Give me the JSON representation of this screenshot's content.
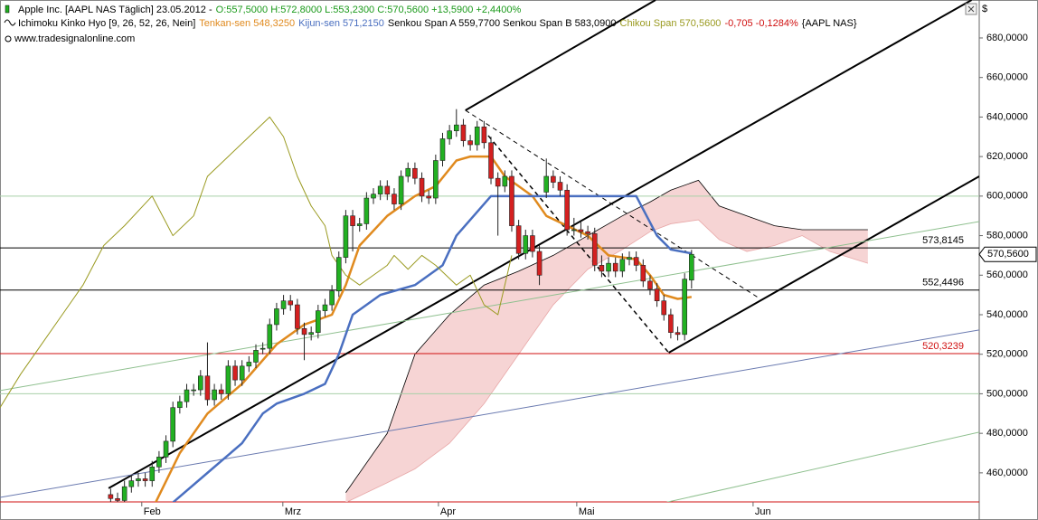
{
  "header": {
    "line1": [
      {
        "text": "Apple Inc. [AAPL NAS  Täglich] 23.05.2012 -",
        "color": "#000000"
      },
      {
        "text": "O:557,5000 H:572,8000 L:553,2300 C:570,5600 +13,5900 +2,4400%",
        "color": "#1a9a1a"
      }
    ],
    "line2": [
      {
        "text": "Ichimoku Kinko Hyo [9, 26, 52, 26, Nein]",
        "color": "#000000"
      },
      {
        "text": "Tenkan-sen 548,3250",
        "color": "#e08a1e"
      },
      {
        "text": "Kijun-sen 571,2150",
        "color": "#4a6fc0"
      },
      {
        "text": "Senkou Span A 559,7700 Senkou Span B 583,0900",
        "color": "#000000"
      },
      {
        "text": "Chikou Span 570,5600",
        "color": "#9a9a20"
      },
      {
        "text": "-0,705 -0,1284%",
        "color": "#d01010"
      },
      {
        "text": "{AAPL NAS}",
        "color": "#000000"
      }
    ],
    "line3": "www.tradesignalonline.com",
    "currency": "$"
  },
  "chart_data": {
    "type": "candlestick",
    "xlim": [
      0,
      141.6
    ],
    "ylim": [
      445.3,
      699.2
    ],
    "xticks": [
      {
        "value": 20.5,
        "label": "Feb"
      },
      {
        "value": 40.9,
        "label": "Mrz"
      },
      {
        "value": 63.4,
        "label": "Apr"
      },
      {
        "value": 83.4,
        "label": "Mai"
      },
      {
        "value": 108.9,
        "label": "Jun"
      }
    ],
    "yticks": [
      {
        "value": 460,
        "label": "460,0000"
      },
      {
        "value": 480,
        "label": "480,0000"
      },
      {
        "value": 500,
        "label": "500,0000"
      },
      {
        "value": 520,
        "label": "520,0000"
      },
      {
        "value": 540,
        "label": "540,0000"
      },
      {
        "value": 560,
        "label": "560,0000"
      },
      {
        "value": 580,
        "label": "580,0000"
      },
      {
        "value": 600,
        "label": "600,0000"
      },
      {
        "value": 620,
        "label": "620,0000"
      },
      {
        "value": 640,
        "label": "640,0000"
      },
      {
        "value": 660,
        "label": "660,0000"
      },
      {
        "value": 680,
        "label": "680,0000"
      }
    ],
    "up_color": "#22b022",
    "down_color": "#d42020",
    "candles": [
      [
        16,
        449,
        452,
        444,
        447
      ],
      [
        17,
        447,
        450,
        443,
        446
      ],
      [
        18,
        446,
        456,
        443,
        453
      ],
      [
        19,
        453,
        459,
        450,
        456
      ],
      [
        20,
        456,
        460,
        453,
        457
      ],
      [
        21,
        457,
        460,
        453,
        456
      ],
      [
        22,
        456,
        466,
        453,
        463
      ],
      [
        23,
        463,
        471,
        460,
        468
      ],
      [
        24,
        468,
        479,
        465,
        476
      ],
      [
        25,
        476,
        496,
        473,
        493
      ],
      [
        26,
        493,
        499,
        490,
        496
      ],
      [
        27,
        496,
        505,
        493,
        502
      ],
      [
        28,
        502,
        505,
        499,
        502
      ],
      [
        29,
        502,
        512,
        499,
        509
      ],
      [
        30,
        509,
        526,
        494,
        497
      ],
      [
        31,
        497,
        505,
        494,
        502
      ],
      [
        32,
        502,
        505,
        497,
        500
      ],
      [
        33,
        500,
        517,
        497,
        514
      ],
      [
        34,
        514,
        517,
        504,
        507
      ],
      [
        35,
        507,
        517,
        504,
        514
      ],
      [
        36,
        514,
        519,
        511,
        516
      ],
      [
        37,
        516,
        525,
        513,
        522
      ],
      [
        38,
        523,
        526,
        520,
        523
      ],
      [
        39,
        523,
        538,
        520,
        535
      ],
      [
        40,
        535,
        546,
        532,
        543
      ],
      [
        41,
        543,
        550,
        540,
        547
      ],
      [
        42,
        547,
        550,
        542,
        545
      ],
      [
        43,
        545,
        548,
        530,
        533
      ],
      [
        44,
        533,
        536,
        517,
        530
      ],
      [
        45,
        530,
        534,
        527,
        531
      ],
      [
        46,
        531,
        545,
        528,
        542
      ],
      [
        47,
        542,
        548,
        539,
        545
      ],
      [
        48,
        545,
        555,
        542,
        552
      ],
      [
        49,
        552,
        572,
        549,
        569
      ],
      [
        50,
        569,
        593,
        566,
        590
      ],
      [
        51,
        590,
        593,
        572,
        585
      ],
      [
        52,
        585,
        589,
        582,
        586
      ],
      [
        53,
        586,
        602,
        583,
        599
      ],
      [
        54,
        599,
        604,
        596,
        601
      ],
      [
        55,
        601,
        608,
        598,
        605
      ],
      [
        56,
        605,
        608,
        598,
        601
      ],
      [
        57,
        601,
        604,
        593,
        596
      ],
      [
        58,
        596,
        613,
        593,
        610
      ],
      [
        59,
        610,
        617,
        607,
        614
      ],
      [
        60,
        614,
        617,
        606,
        609
      ],
      [
        61,
        609,
        612,
        597,
        600
      ],
      [
        62,
        600,
        603,
        596,
        599
      ],
      [
        63,
        599,
        621,
        596,
        618
      ],
      [
        64,
        618,
        632,
        615,
        629
      ],
      [
        65,
        629,
        636,
        626,
        633
      ],
      [
        66,
        633,
        644,
        630,
        636
      ],
      [
        67,
        636,
        639,
        625,
        628
      ],
      [
        68,
        628,
        631,
        623,
        626
      ],
      [
        69,
        626,
        638,
        623,
        635
      ],
      [
        70,
        635,
        638,
        624,
        627
      ],
      [
        71,
        627,
        630,
        606,
        609
      ],
      [
        72,
        609,
        612,
        580,
        605
      ],
      [
        73,
        605,
        613,
        602,
        610
      ],
      [
        74,
        610,
        613,
        582,
        585
      ],
      [
        75,
        585,
        588,
        568,
        571
      ],
      [
        76,
        571,
        583,
        568,
        580
      ],
      [
        77,
        580,
        583,
        569,
        572
      ],
      [
        78,
        572,
        575,
        555,
        560
      ],
      [
        79,
        602,
        619,
        599,
        610
      ],
      [
        80,
        610,
        613,
        604,
        607
      ],
      [
        81,
        607,
        610,
        600,
        603
      ],
      [
        82,
        603,
        606,
        580,
        583
      ],
      [
        83,
        583,
        589,
        580,
        583
      ],
      [
        84,
        583,
        588,
        579,
        582
      ],
      [
        85,
        582,
        585,
        578,
        581
      ],
      [
        86,
        581,
        584,
        562,
        565
      ],
      [
        87,
        565,
        570,
        559,
        562
      ],
      [
        88,
        562,
        569,
        559,
        566
      ],
      [
        89,
        566,
        569,
        559,
        562
      ],
      [
        90,
        562,
        571,
        559,
        568
      ],
      [
        91,
        568,
        572,
        565,
        569
      ],
      [
        92,
        569,
        572,
        562,
        565
      ],
      [
        93,
        565,
        568,
        554,
        557
      ],
      [
        94,
        557,
        560,
        550,
        553
      ],
      [
        95,
        553,
        556,
        544,
        547
      ],
      [
        96,
        547,
        550,
        537,
        540
      ],
      [
        97,
        540,
        543,
        528,
        531
      ],
      [
        98,
        531,
        534,
        527,
        530
      ],
      [
        99,
        530,
        561,
        527,
        558
      ],
      [
        100,
        557.5,
        572.8,
        553.23,
        570.56
      ]
    ],
    "cloud": {
      "fill": "#f6d4d4",
      "x": [
        50,
        56,
        60,
        65,
        70,
        75,
        80,
        85,
        90,
        94,
        97,
        101,
        104,
        108,
        112,
        116,
        120,
        125.5
      ],
      "span_a": [
        445,
        455,
        462,
        475,
        495,
        520,
        545,
        563,
        573,
        582,
        586,
        588,
        578,
        572,
        575,
        580,
        572,
        566
      ],
      "span_b": [
        450,
        480,
        520,
        540,
        555,
        562,
        570,
        580,
        590,
        597,
        603,
        608,
        595,
        590,
        585,
        583,
        583,
        583
      ],
      "span_a_color": "#e8a8a8",
      "span_b_color": "#000000"
    },
    "series": [
      {
        "color": "#e08a1e",
        "width": 2.5,
        "x": [
          22.5,
          26,
          30,
          35,
          40,
          44,
          48,
          50,
          52,
          56,
          60,
          63,
          66,
          68,
          71,
          73,
          75,
          77,
          79,
          82,
          85,
          88,
          92,
          94,
          96,
          98,
          100
        ],
        "values": [
          445,
          470,
          490,
          505,
          525,
          535,
          540,
          555,
          575,
          590,
          600,
          605,
          618,
          620,
          620,
          610,
          605,
          600,
          590,
          585,
          580,
          570,
          568,
          560,
          550,
          548,
          549
        ]
      },
      {
        "color": "#4a6fc0",
        "width": 2.5,
        "x": [
          25,
          30,
          35,
          38,
          40,
          44,
          47,
          49,
          51,
          55,
          60,
          64,
          66,
          71,
          78,
          85,
          92,
          95,
          97,
          100
        ],
        "values": [
          445,
          460,
          475,
          490,
          495,
          500,
          505,
          520,
          540,
          550,
          555,
          565,
          580,
          600,
          600,
          600,
          600,
          580,
          573,
          571
        ]
      },
      {
        "color": "#9a9a20",
        "width": 1,
        "x": [
          0,
          3,
          6,
          9,
          12,
          15,
          18,
          22,
          25,
          28,
          30,
          33,
          36,
          39,
          41,
          43,
          45,
          47,
          48,
          50,
          52,
          54,
          56,
          57,
          59,
          61,
          63,
          66,
          68,
          70,
          72,
          74
        ],
        "values": [
          493,
          510,
          525,
          540,
          555,
          575,
          585,
          600,
          580,
          590,
          610,
          620,
          630,
          640,
          630,
          610,
          595,
          585,
          570,
          560,
          555,
          560,
          565,
          570,
          563,
          570,
          565,
          555,
          560,
          545,
          540,
          570
        ]
      }
    ],
    "trendlines": [
      {
        "x": [
          15.7,
          140.5
        ],
        "y": [
          452.2,
          699.2
        ],
        "color": "#000000",
        "width": 2
      },
      {
        "x": [
          96.7,
          141.6
        ],
        "y": [
          520.8,
          610
        ],
        "color": "#000000",
        "width": 2
      },
      {
        "x": [
          67.3,
          94.8
        ],
        "y": [
          643.4,
          699.2
        ],
        "color": "#000000",
        "width": 2
      },
      {
        "x": [
          67.3,
          109.8
        ],
        "y": [
          643.4,
          548.3
        ],
        "color": "#000000",
        "width": 1,
        "dash": true
      },
      {
        "x": [
          70.6,
          96.7
        ],
        "y": [
          630.6,
          520.8
        ],
        "color": "#000000",
        "width": 1.5,
        "dash": true
      },
      {
        "x": [
          0,
          141.6
        ],
        "y": [
          501.6,
          587.1
        ],
        "color": "#8fc08f",
        "width": 1
      },
      {
        "x": [
          85,
          141.6
        ],
        "y": [
          436.2,
          480.6
        ],
        "color": "#8fc08f",
        "width": 1
      },
      {
        "x": [
          0,
          141.6
        ],
        "y": [
          447.6,
          532.3
        ],
        "color": "#6a7ab0",
        "width": 1
      }
    ],
    "levels": [
      {
        "value": 600,
        "color": "#a8d0a8"
      },
      {
        "value": 500,
        "color": "#a8d0a8"
      },
      {
        "value": 573.8145,
        "label": "573,8145",
        "color": "#000000"
      },
      {
        "value": 552.4496,
        "label": "552,4496",
        "color": "#000000"
      },
      {
        "value": 520.3239,
        "label": "520,3239",
        "color": "#d01010"
      }
    ],
    "last_price": {
      "value": 570.56,
      "label": "570,5600"
    }
  }
}
